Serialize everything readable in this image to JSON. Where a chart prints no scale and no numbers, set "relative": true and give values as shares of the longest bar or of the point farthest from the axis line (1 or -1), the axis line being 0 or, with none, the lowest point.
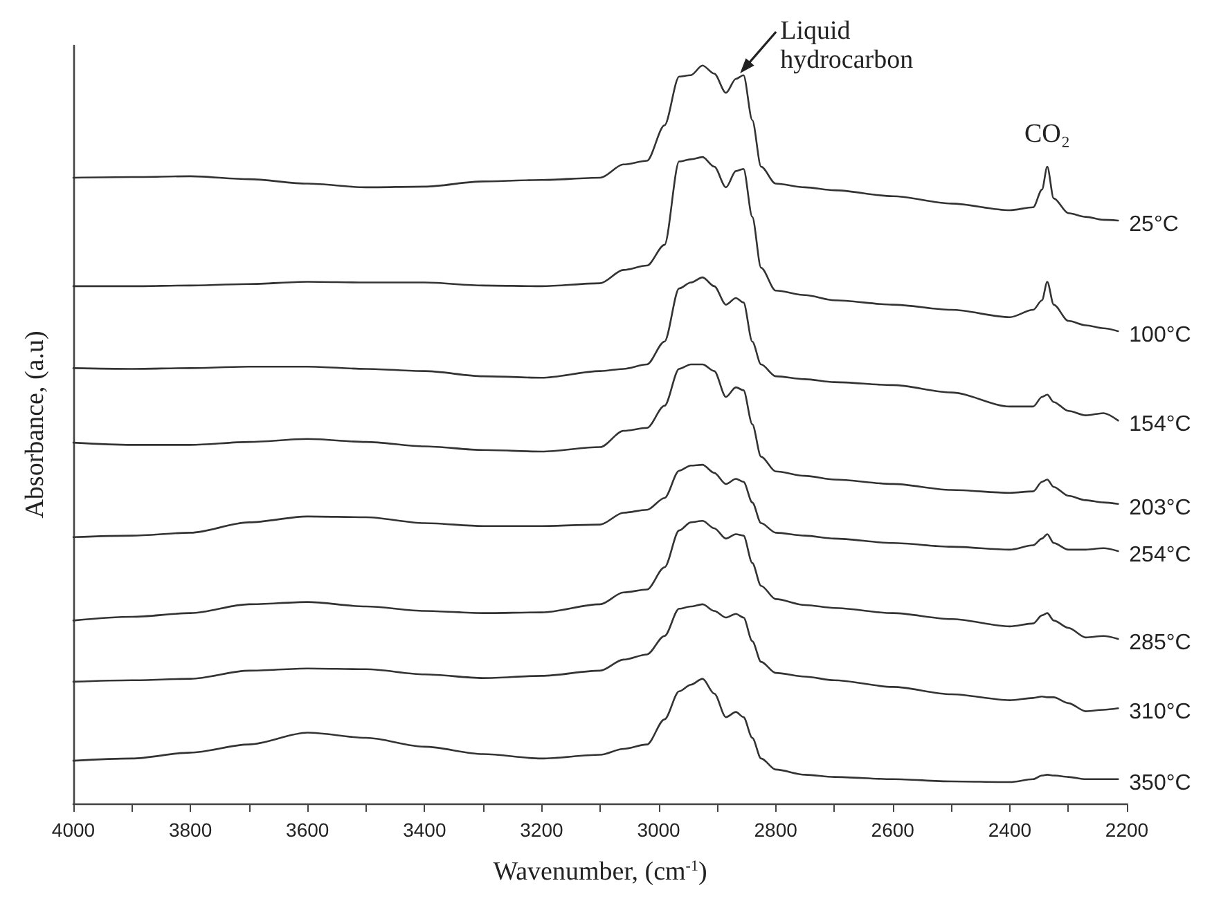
{
  "chart_data": {
    "type": "line",
    "relative": true,
    "xlabel": "Wavenumber, (cm$^{-1}$)",
    "ylabel": "Absorbance, (a.u)",
    "xlim": [
      4000,
      2200
    ],
    "xticks": [
      4000,
      {
        "value": 3900,
        "label": null
      },
      3800,
      {
        "value": 3700,
        "label": null
      },
      3600,
      {
        "value": 3500,
        "label": null
      },
      3400,
      {
        "value": 3300,
        "label": null
      },
      3200,
      {
        "value": 3100,
        "label": null
      },
      3000,
      {
        "value": 2900,
        "label": null
      },
      2800,
      {
        "value": 2700,
        "label": null
      },
      2600,
      {
        "value": 2500,
        "label": null
      },
      2400,
      {
        "value": 2300,
        "label": null
      },
      2200
    ],
    "x": [
      4000,
      3900,
      3800,
      3700,
      3600,
      3500,
      3400,
      3300,
      3200,
      3100,
      3060,
      3020,
      2990,
      2965,
      2945,
      2925,
      2905,
      2885,
      2868,
      2855,
      2840,
      2825,
      2800,
      2750,
      2700,
      2600,
      2500,
      2400,
      2360,
      2345,
      2336,
      2325,
      2300,
      2270,
      2240,
      2215
    ],
    "marker": "none",
    "line_style": "solid",
    "grid": false,
    "legend": false,
    "series": [
      {
        "name": "25°C",
        "color": "#333333",
        "values": [
          0.848,
          0.849,
          0.85,
          0.846,
          0.84,
          0.835,
          0.836,
          0.843,
          0.845,
          0.848,
          0.866,
          0.871,
          0.919,
          0.985,
          0.987,
          1,
          0.989,
          0.963,
          0.982,
          0.987,
          0.926,
          0.863,
          0.84,
          0.835,
          0.831,
          0.823,
          0.813,
          0.804,
          0.808,
          0.832,
          0.863,
          0.82,
          0.8,
          0.795,
          0.791,
          0.79
        ]
      },
      {
        "name": "100°C",
        "color": "#333333",
        "values": [
          0.701,
          0.701,
          0.702,
          0.704,
          0.707,
          0.706,
          0.706,
          0.702,
          0.701,
          0.705,
          0.723,
          0.729,
          0.757,
          0.87,
          0.873,
          0.876,
          0.863,
          0.835,
          0.857,
          0.86,
          0.795,
          0.726,
          0.695,
          0.689,
          0.682,
          0.676,
          0.669,
          0.659,
          0.669,
          0.682,
          0.707,
          0.676,
          0.654,
          0.648,
          0.644,
          0.64
        ]
      },
      {
        "name": "154°C",
        "color": "#333333",
        "values": [
          0.59,
          0.589,
          0.59,
          0.592,
          0.592,
          0.589,
          0.586,
          0.579,
          0.577,
          0.586,
          0.589,
          0.595,
          0.626,
          0.698,
          0.706,
          0.713,
          0.701,
          0.676,
          0.685,
          0.679,
          0.626,
          0.595,
          0.579,
          0.575,
          0.571,
          0.567,
          0.557,
          0.538,
          0.538,
          0.551,
          0.554,
          0.544,
          0.532,
          0.526,
          0.529,
          0.519
        ]
      },
      {
        "name": "203°C",
        "color": "#333333",
        "values": [
          0.489,
          0.486,
          0.486,
          0.49,
          0.494,
          0.49,
          0.484,
          0.479,
          0.477,
          0.483,
          0.505,
          0.509,
          0.539,
          0.589,
          0.595,
          0.595,
          0.586,
          0.551,
          0.564,
          0.56,
          0.514,
          0.47,
          0.45,
          0.444,
          0.439,
          0.433,
          0.425,
          0.421,
          0.423,
          0.436,
          0.439,
          0.429,
          0.417,
          0.411,
          0.408,
          0.406
        ]
      },
      {
        "name": "254°C",
        "color": "#333333",
        "values": [
          0.361,
          0.363,
          0.367,
          0.381,
          0.389,
          0.388,
          0.38,
          0.376,
          0.376,
          0.378,
          0.394,
          0.398,
          0.414,
          0.451,
          0.458,
          0.459,
          0.448,
          0.433,
          0.44,
          0.436,
          0.408,
          0.38,
          0.367,
          0.363,
          0.359,
          0.353,
          0.348,
          0.344,
          0.35,
          0.359,
          0.365,
          0.353,
          0.344,
          0.344,
          0.346,
          0.342
        ]
      },
      {
        "name": "285°C",
        "color": "#333333",
        "values": [
          0.248,
          0.253,
          0.258,
          0.27,
          0.273,
          0.267,
          0.261,
          0.258,
          0.259,
          0.27,
          0.286,
          0.29,
          0.32,
          0.37,
          0.381,
          0.383,
          0.373,
          0.359,
          0.365,
          0.363,
          0.326,
          0.295,
          0.277,
          0.269,
          0.265,
          0.258,
          0.25,
          0.24,
          0.244,
          0.255,
          0.258,
          0.248,
          0.238,
          0.225,
          0.227,
          0.223
        ]
      },
      {
        "name": "310°C",
        "color": "#333333",
        "values": [
          0.165,
          0.167,
          0.169,
          0.18,
          0.183,
          0.182,
          0.175,
          0.17,
          0.173,
          0.18,
          0.195,
          0.202,
          0.227,
          0.264,
          0.267,
          0.27,
          0.261,
          0.252,
          0.257,
          0.252,
          0.22,
          0.192,
          0.177,
          0.172,
          0.167,
          0.158,
          0.148,
          0.14,
          0.143,
          0.145,
          0.144,
          0.144,
          0.136,
          0.125,
          0.127,
          0.129
        ]
      },
      {
        "name": "350°C",
        "color": "#333333",
        "values": [
          0.058,
          0.061,
          0.069,
          0.08,
          0.096,
          0.089,
          0.077,
          0.067,
          0.061,
          0.066,
          0.074,
          0.08,
          0.114,
          0.152,
          0.161,
          0.169,
          0.149,
          0.117,
          0.124,
          0.117,
          0.089,
          0.061,
          0.046,
          0.039,
          0.036,
          0.033,
          0.03,
          0.029,
          0.033,
          0.038,
          0.039,
          0.038,
          0.036,
          0.033,
          0.033,
          0.033
        ]
      }
    ],
    "annotations": [
      {
        "text": "Liquid hydrocarbon",
        "x": 2868,
        "y": 0.982
      },
      {
        "text": "CO₂",
        "x": 2336,
        "y": 0.863
      }
    ]
  }
}
